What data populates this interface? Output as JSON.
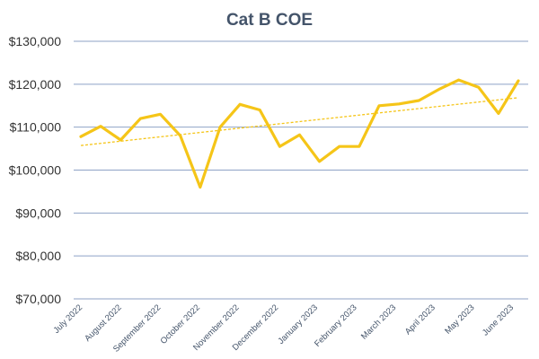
{
  "chart_data": {
    "type": "line",
    "title": "Cat B COE",
    "xlabel": "",
    "ylabel": "",
    "ylim": [
      70000,
      130000
    ],
    "y_ticks": [
      "$70,000",
      "$80,000",
      "$90,000",
      "$100,000",
      "$110,000",
      "$120,000",
      "$130,000"
    ],
    "x_tick_labels": [
      "July 2022",
      "August 2022",
      "September 2022",
      "October 2022",
      "November 2022",
      "December 2022",
      "January 2023",
      "February 2023",
      "March 2023",
      "April 2023",
      "May 2023",
      "June 2023"
    ],
    "grid": true,
    "legend": "none",
    "trendline": "linear",
    "series": [
      {
        "color": "#f5c518",
        "values": [
          107800,
          110200,
          107000,
          112000,
          113000,
          108000,
          96000,
          110000,
          115300,
          114000,
          105500,
          108200,
          102000,
          105500,
          105500,
          115000,
          115400,
          116200,
          118800,
          121000,
          119300,
          113200,
          120800
        ]
      }
    ]
  }
}
